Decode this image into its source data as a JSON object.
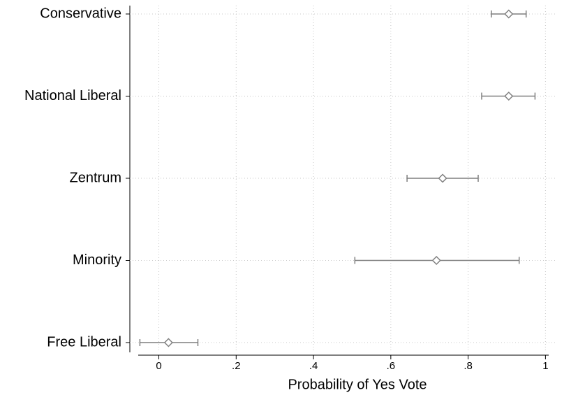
{
  "chart_data": {
    "type": "dot",
    "x_label": "Probability of Yes Vote",
    "categories": [
      "Conservative",
      "National Liberal",
      "Zentrum",
      "Minority",
      "Free Liberal"
    ],
    "values": [
      0.905,
      0.905,
      0.734,
      0.718,
      0.025
    ],
    "ci_low": [
      0.86,
      0.835,
      0.642,
      0.507,
      -0.049
    ],
    "ci_high": [
      0.95,
      0.973,
      0.826,
      0.932,
      0.101
    ],
    "color": "#7f7f7f",
    "xlim": [
      -0.075,
      1.03
    ],
    "xticks": [
      0,
      {
        "value": 0.2,
        "label": ".2"
      },
      {
        "value": 0.4,
        "label": ".4"
      },
      {
        "value": 0.6,
        "label": ".6"
      },
      {
        "value": 0.8,
        "label": ".8"
      },
      1
    ],
    "grid": true
  }
}
